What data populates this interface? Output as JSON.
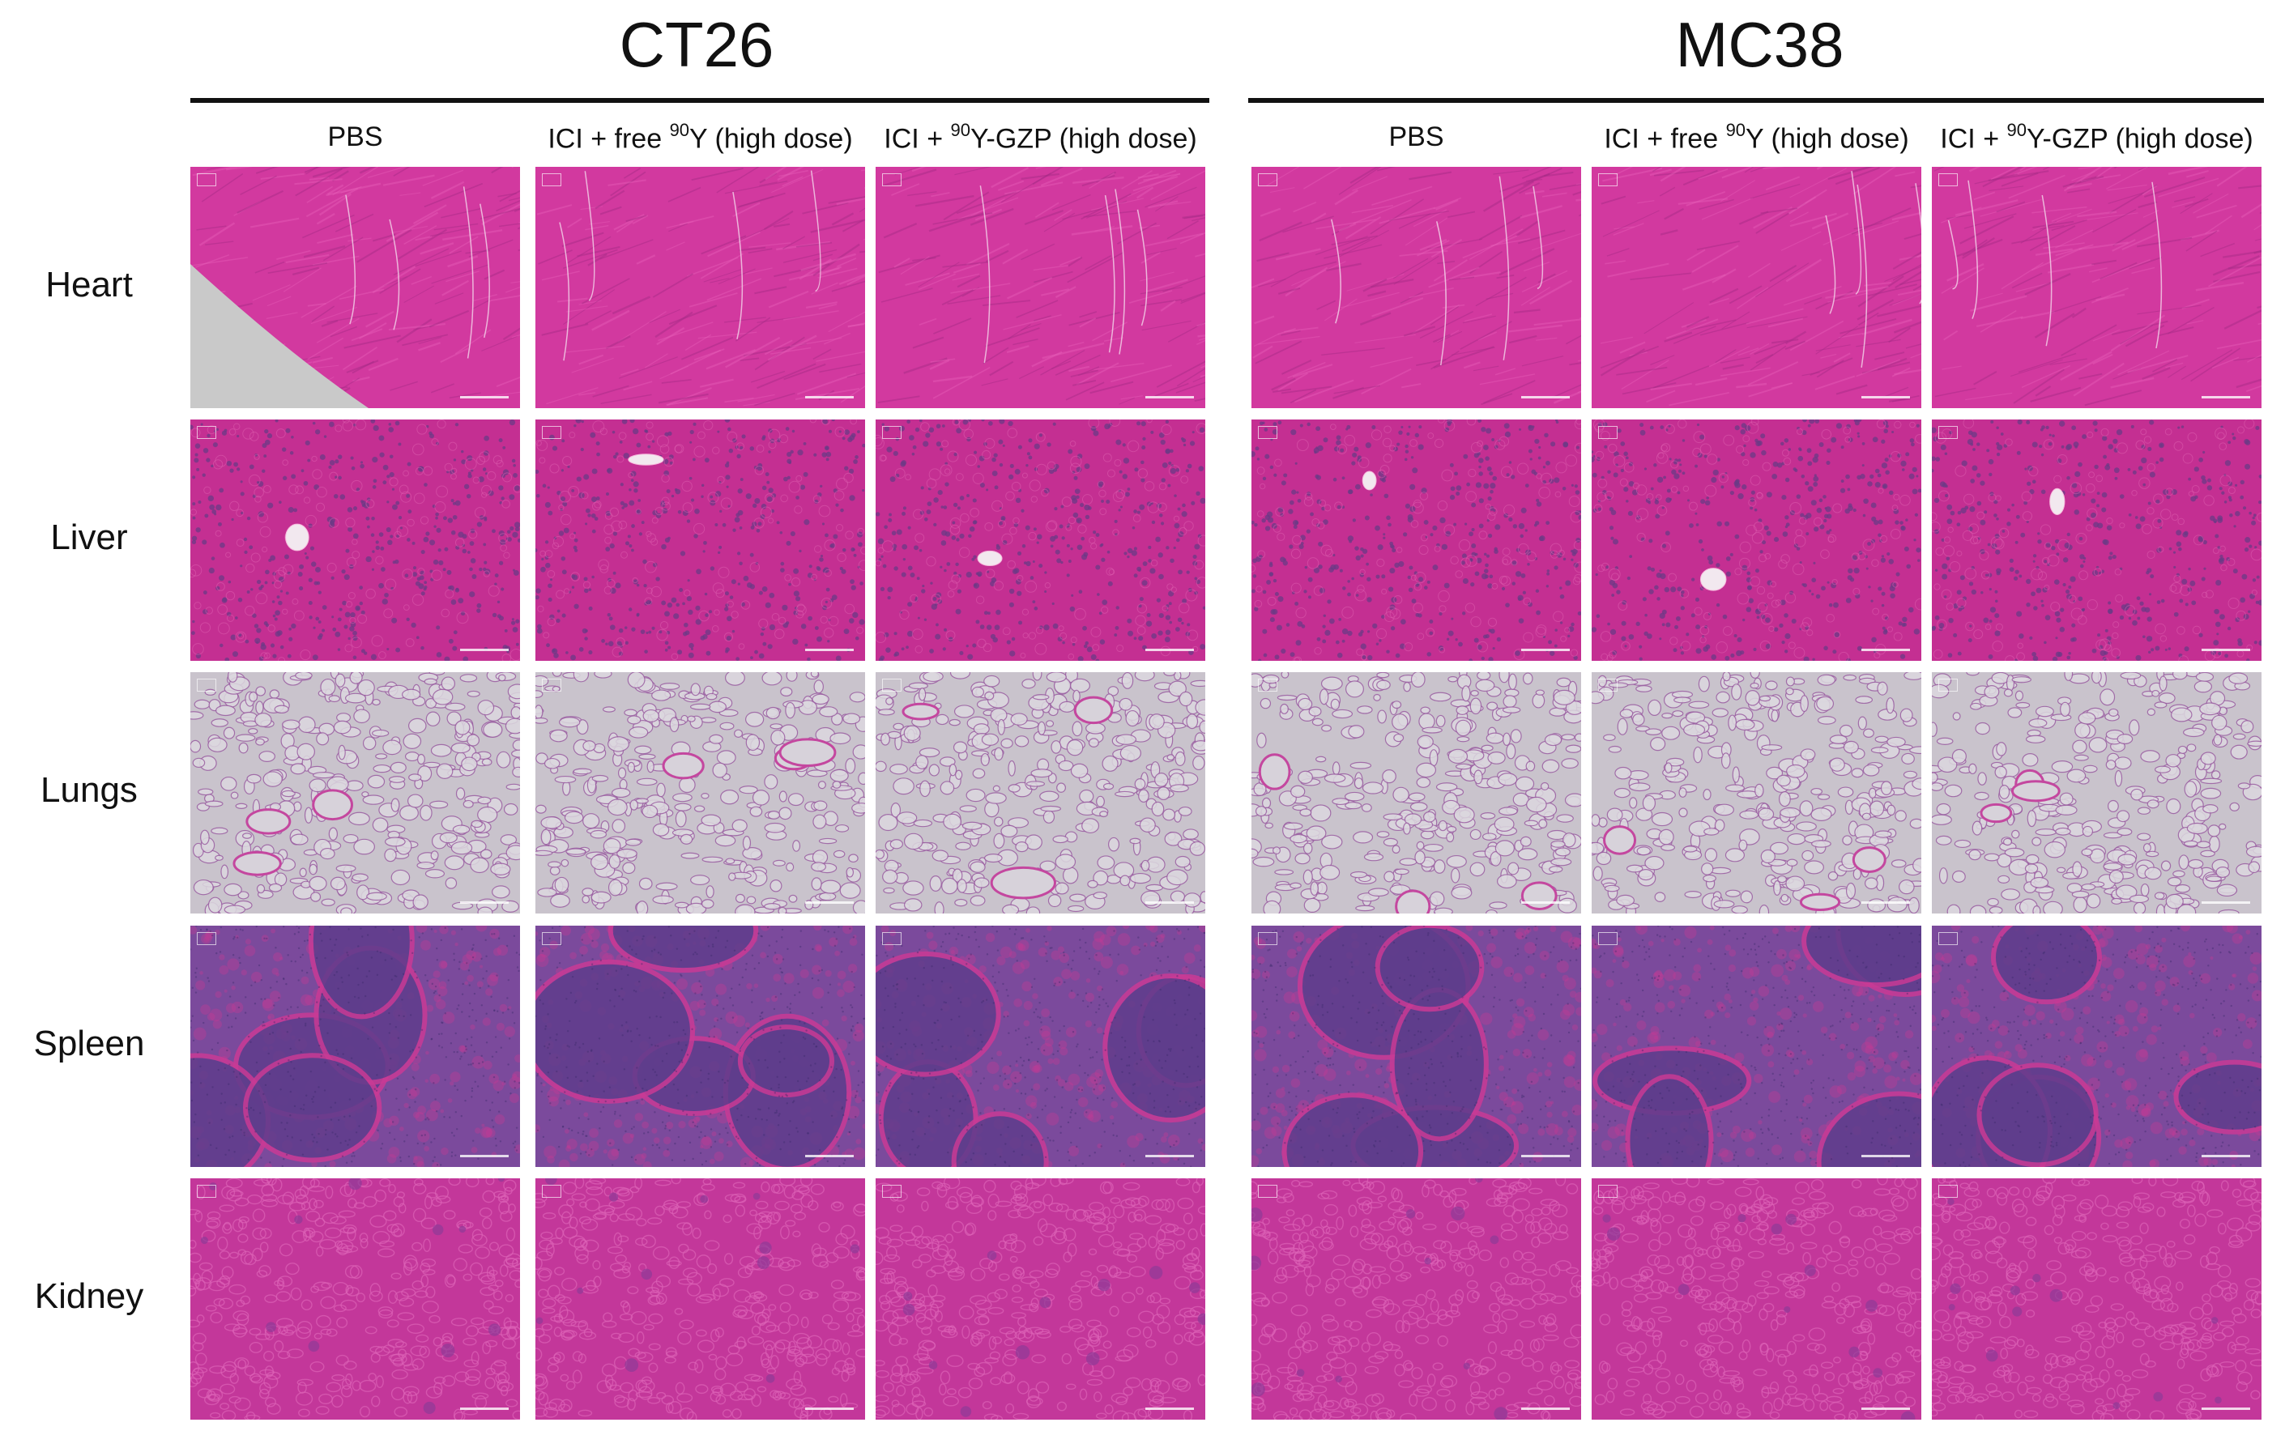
{
  "groups": [
    {
      "title": "CT26",
      "columns": [
        {
          "pre": "PBS",
          "sup": "",
          "post": ""
        },
        {
          "pre": "ICI + free ",
          "sup": "90",
          "post": "Y (high dose)"
        },
        {
          "pre": "ICI + ",
          "sup": "90",
          "post": "Y-GZP (high dose)"
        }
      ]
    },
    {
      "title": "MC38",
      "columns": [
        {
          "pre": "PBS",
          "sup": "",
          "post": ""
        },
        {
          "pre": "ICI + free ",
          "sup": "90",
          "post": "Y (high dose)"
        },
        {
          "pre": "ICI + ",
          "sup": "90",
          "post": "Y-GZP (high dose)"
        }
      ]
    }
  ],
  "rows": [
    "Heart",
    "Liver",
    "Lungs",
    "Spleen",
    "Kidney"
  ],
  "tissue_images": {
    "Heart": {
      "base": "#d2399f",
      "accent": "#e85db8",
      "detail": "#a52a86",
      "texture": "fibers"
    },
    "Liver": {
      "base": "#c42f92",
      "accent": "#e061b1",
      "detail": "#6b3b86",
      "texture": "cells"
    },
    "Lungs": {
      "base": "#c9c3cc",
      "accent": "#c4479f",
      "detail": "#9b5fa2",
      "texture": "alveoli"
    },
    "Spleen": {
      "base": "#7b4a9c",
      "accent": "#c93a95",
      "detail": "#5f3d8c",
      "texture": "follicles"
    },
    "Kidney": {
      "base": "#c3379a",
      "accent": "#dd62b6",
      "detail": "#8f3a97",
      "texture": "tubules"
    }
  }
}
